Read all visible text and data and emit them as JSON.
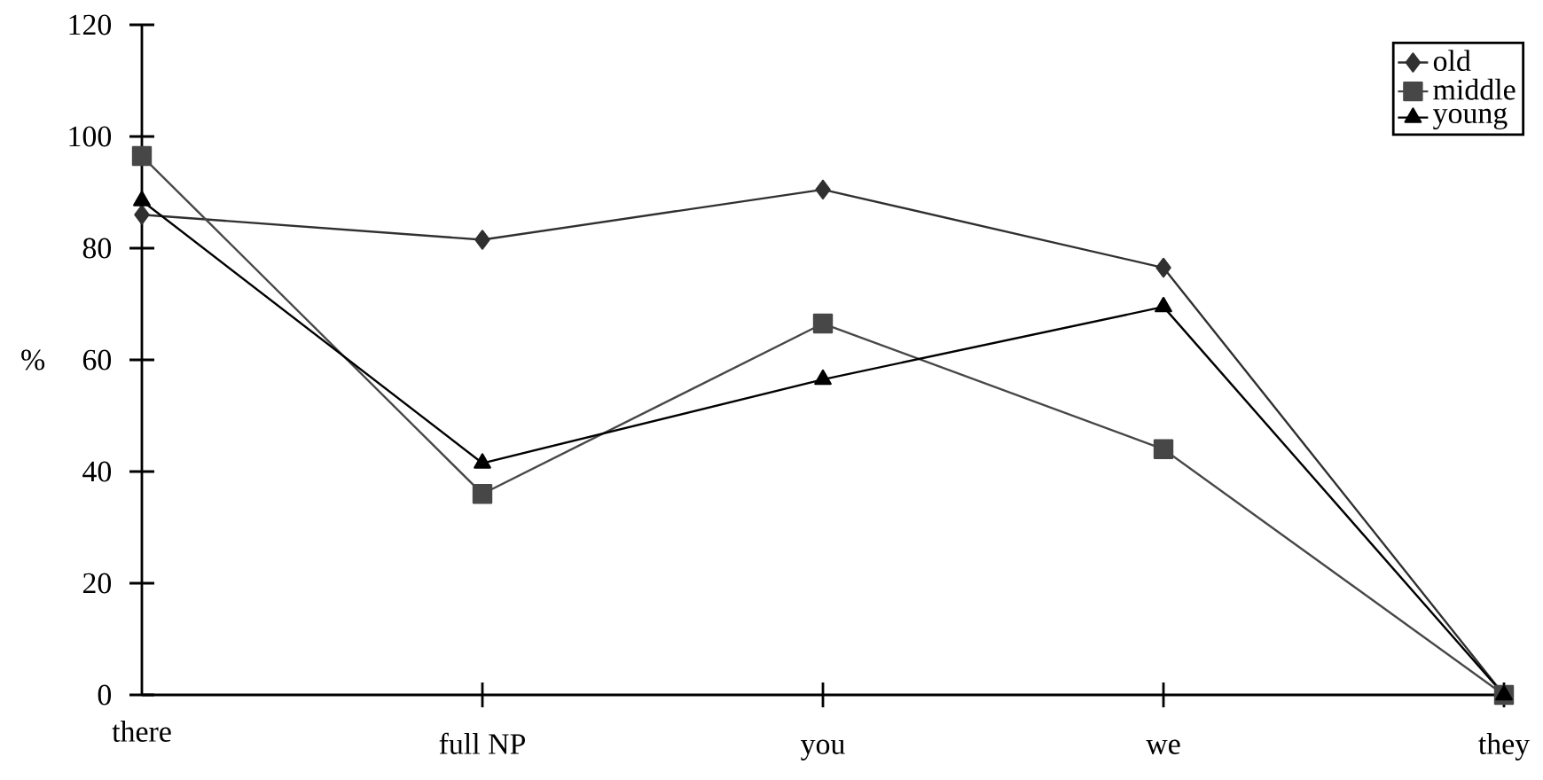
{
  "chart_data": {
    "type": "line",
    "ylabel": "%",
    "categories": [
      "there",
      "full NP",
      "you",
      "we",
      "they"
    ],
    "series": [
      {
        "name": "old",
        "color": "#303030",
        "marker": "diamond",
        "values": [
          86,
          81.5,
          90.5,
          76.5,
          0
        ]
      },
      {
        "name": "middle",
        "color": "#474747",
        "marker": "square",
        "values": [
          96.5,
          36,
          66.5,
          44,
          0
        ]
      },
      {
        "name": "young",
        "color": "#000000",
        "marker": "triangle",
        "values": [
          88.5,
          41.5,
          56.5,
          69.5,
          0
        ]
      }
    ],
    "ylim": [
      0,
      120
    ],
    "yticks": [
      0,
      20,
      40,
      60,
      80,
      100,
      120
    ],
    "legend": "top right",
    "line_style": "solid"
  }
}
